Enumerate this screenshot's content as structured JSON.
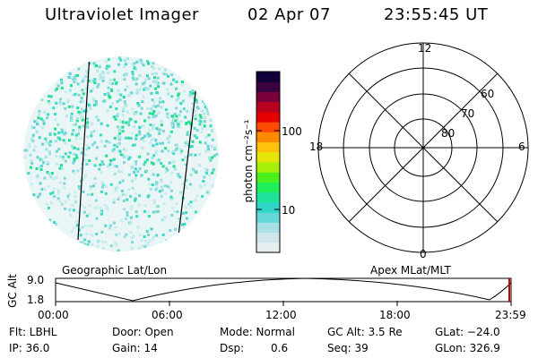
{
  "header": {
    "instrument": "Ultraviolet Imager",
    "date": "02 Apr 07",
    "time": "23:55:45 UT"
  },
  "colorbar": {
    "unit_label": "photon cm⁻²s⁻¹",
    "tick_100": "100",
    "tick_10": "10",
    "colors": [
      "#e6f0f0",
      "#cfe6ea",
      "#a9e0e6",
      "#64d8d8",
      "#2fd6c8",
      "#1ee39a",
      "#1ef05a",
      "#4cf01c",
      "#a6f00a",
      "#e6e60a",
      "#ffc20a",
      "#ff8a00",
      "#ff4a00",
      "#e60000",
      "#b8001e",
      "#7a003a",
      "#3a0040",
      "#10003a"
    ]
  },
  "geo_panel": {
    "label": "Geographic Lat/Lon"
  },
  "polar_panel": {
    "label": "Apex MLat/MLT",
    "mlt_top": "12",
    "mlt_left": "18",
    "mlt_right": "6",
    "mlt_bottom": "0",
    "lat_60": "60",
    "lat_70": "70",
    "lat_80": "80"
  },
  "altitude_plot": {
    "ylabel": "GC Alt",
    "y_top": "9.0",
    "y_bottom": "1.8",
    "x_ticks": [
      "00:00",
      "06:00",
      "12:00",
      "18:00",
      "23:59"
    ],
    "marker_color": "#cc0000"
  },
  "status": {
    "filter": "Flt: LBHL",
    "ip": "IP: 36.0",
    "door": "Door: Open",
    "gain": "Gain: 14",
    "mode": "Mode: Normal",
    "dsp_label": "Dsp:",
    "dsp_value": "0.6",
    "gc_alt": "GC Alt: 3.5 Re",
    "seq": "Seq: 39",
    "glat": "GLat: −24.0",
    "glon": "GLon: 326.9"
  }
}
